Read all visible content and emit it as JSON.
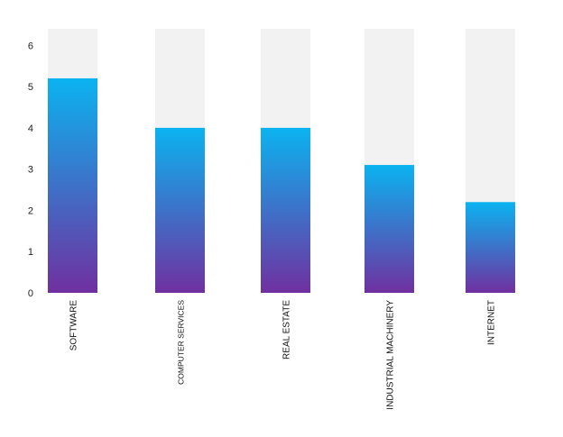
{
  "chart_data": {
    "type": "bar",
    "title": "",
    "xlabel": "",
    "ylabel": "",
    "categories": [
      "SOFTWARE",
      "COMPUTER SERVICES",
      "REAL ESTATE",
      "INDUSTRIAL MACHINERY",
      "INTERNET"
    ],
    "values": [
      5.2,
      4.0,
      4.0,
      3.1,
      2.2
    ],
    "ylim": [
      0,
      6.4
    ],
    "yticks": [
      0,
      1,
      2,
      3,
      4,
      5,
      6
    ],
    "grid": false,
    "legend": "none",
    "colors": {
      "bar_top": "#0bb3f0",
      "bar_bottom": "#7030a0",
      "track": "#f2f2f2"
    }
  }
}
